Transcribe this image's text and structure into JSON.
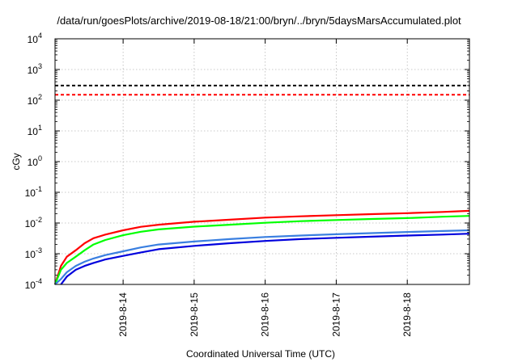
{
  "chart_data": {
    "type": "line",
    "title": "/data/run/goesPlots/archive/2019-08-18/21:00/bryn/../bryn/5daysMarsAccumulated.plot",
    "xlabel": "Coordinated Universal Time (UTC)",
    "ylabel": "cGy",
    "y_scale": "log",
    "ylim": [
      0.0001,
      10000
    ],
    "xlim": [
      "2019-08-13 01:00",
      "2019-08-18 21:00"
    ],
    "x_ticks": [
      "2019-8-14",
      "2019-8-15",
      "2019-8-16",
      "2019-8-17",
      "2019-8-18"
    ],
    "y_ticks": [
      {
        "value": 0.0001,
        "base": "10",
        "exp": "-4"
      },
      {
        "value": 0.001,
        "base": "10",
        "exp": "-3"
      },
      {
        "value": 0.01,
        "base": "10",
        "exp": "-2"
      },
      {
        "value": 0.1,
        "base": "10",
        "exp": "-1"
      },
      {
        "value": 1,
        "base": "10",
        "exp": "0"
      },
      {
        "value": 10,
        "base": "10",
        "exp": "1"
      },
      {
        "value": 100,
        "base": "10",
        "exp": "2"
      },
      {
        "value": 1000,
        "base": "10",
        "exp": "3"
      },
      {
        "value": 10000,
        "base": "10",
        "exp": "4"
      }
    ],
    "grid": true,
    "legend": "none",
    "reference_lines": [
      {
        "value": 300,
        "color": "#000000",
        "style": "dashed"
      },
      {
        "value": 150,
        "color": "#ff0000",
        "style": "dashed"
      }
    ],
    "series": [
      {
        "color": "#ff0000",
        "x": [
          "2019-08-13 01:00",
          "2019-08-13 03:00",
          "2019-08-13 05:00",
          "2019-08-13 08:00",
          "2019-08-13 11:00",
          "2019-08-13 14:00",
          "2019-08-13 18:00",
          "2019-08-14 00:00",
          "2019-08-14 06:00",
          "2019-08-14 12:00",
          "2019-08-15 00:00",
          "2019-08-15 12:00",
          "2019-08-16 00:00",
          "2019-08-16 12:00",
          "2019-08-17 00:00",
          "2019-08-17 12:00",
          "2019-08-18 00:00",
          "2019-08-18 12:00",
          "2019-08-18 21:00"
        ],
        "y": [
          0.0001,
          0.0004,
          0.0008,
          0.0013,
          0.0022,
          0.0032,
          0.0042,
          0.0058,
          0.0075,
          0.0088,
          0.011,
          0.0128,
          0.015,
          0.0165,
          0.018,
          0.0195,
          0.021,
          0.023,
          0.025
        ]
      },
      {
        "color": "#00ff00",
        "x": [
          "2019-08-13 01:00",
          "2019-08-13 03:00",
          "2019-08-13 05:00",
          "2019-08-13 08:00",
          "2019-08-13 11:00",
          "2019-08-13 14:00",
          "2019-08-13 18:00",
          "2019-08-14 00:00",
          "2019-08-14 06:00",
          "2019-08-14 12:00",
          "2019-08-15 00:00",
          "2019-08-15 12:00",
          "2019-08-16 00:00",
          "2019-08-16 12:00",
          "2019-08-17 00:00",
          "2019-08-17 12:00",
          "2019-08-18 00:00",
          "2019-08-18 12:00",
          "2019-08-18 21:00"
        ],
        "y": [
          0.0001,
          0.0003,
          0.0005,
          0.0008,
          0.0013,
          0.002,
          0.0028,
          0.004,
          0.0052,
          0.0062,
          0.0076,
          0.0088,
          0.0102,
          0.0115,
          0.0125,
          0.0135,
          0.0145,
          0.016,
          0.017
        ]
      },
      {
        "color": "#3a7fe0",
        "x": [
          "2019-08-13 01:00",
          "2019-08-13 03:00",
          "2019-08-13 05:00",
          "2019-08-13 08:00",
          "2019-08-13 11:00",
          "2019-08-13 14:00",
          "2019-08-13 18:00",
          "2019-08-14 00:00",
          "2019-08-14 06:00",
          "2019-08-14 12:00",
          "2019-08-15 00:00",
          "2019-08-15 12:00",
          "2019-08-16 00:00",
          "2019-08-16 12:00",
          "2019-08-17 00:00",
          "2019-08-17 12:00",
          "2019-08-18 00:00",
          "2019-08-18 12:00",
          "2019-08-18 21:00"
        ],
        "y": [
          0.0001,
          0.00015,
          0.00025,
          0.0004,
          0.00055,
          0.0007,
          0.0009,
          0.0012,
          0.0016,
          0.002,
          0.0025,
          0.003,
          0.0035,
          0.0039,
          0.0043,
          0.0047,
          0.0051,
          0.0055,
          0.0058
        ]
      },
      {
        "color": "#0000dd",
        "x": [
          "2019-08-13 03:00",
          "2019-08-13 05:00",
          "2019-08-13 08:00",
          "2019-08-13 11:00",
          "2019-08-13 14:00",
          "2019-08-13 18:00",
          "2019-08-14 00:00",
          "2019-08-14 06:00",
          "2019-08-14 12:00",
          "2019-08-15 00:00",
          "2019-08-15 12:00",
          "2019-08-16 00:00",
          "2019-08-16 12:00",
          "2019-08-17 00:00",
          "2019-08-17 12:00",
          "2019-08-18 00:00",
          "2019-08-18 12:00",
          "2019-08-18 21:00"
        ],
        "y": [
          0.0001,
          0.00018,
          0.0003,
          0.0004,
          0.0005,
          0.00065,
          0.00085,
          0.0011,
          0.0014,
          0.0018,
          0.0022,
          0.0026,
          0.003,
          0.0033,
          0.0036,
          0.0039,
          0.0042,
          0.0045
        ]
      }
    ]
  }
}
